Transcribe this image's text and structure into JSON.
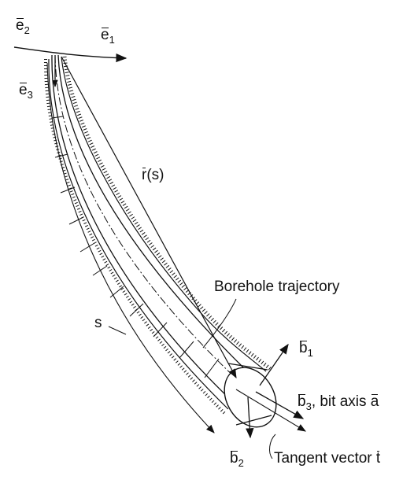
{
  "labels": {
    "e2": {
      "vec": "e",
      "sub": "2"
    },
    "e1": {
      "vec": "e",
      "sub": "1"
    },
    "e3": {
      "vec": "e",
      "sub": "3"
    },
    "r": {
      "vec": "r",
      "rest": "(s)"
    },
    "borehole": "Borehole trajectory",
    "s": "s",
    "b1": {
      "vec": "b",
      "sub": "1"
    },
    "b3": {
      "vec": "b",
      "sub": "3",
      "rest": ",  bit axis ",
      "vec2": "a"
    },
    "b2": {
      "vec": "b",
      "sub": "2"
    },
    "tangent": {
      "text": "Tangent vector ",
      "vec": "t"
    }
  },
  "colors": {
    "ink": "#111111",
    "background": "#ffffff"
  }
}
